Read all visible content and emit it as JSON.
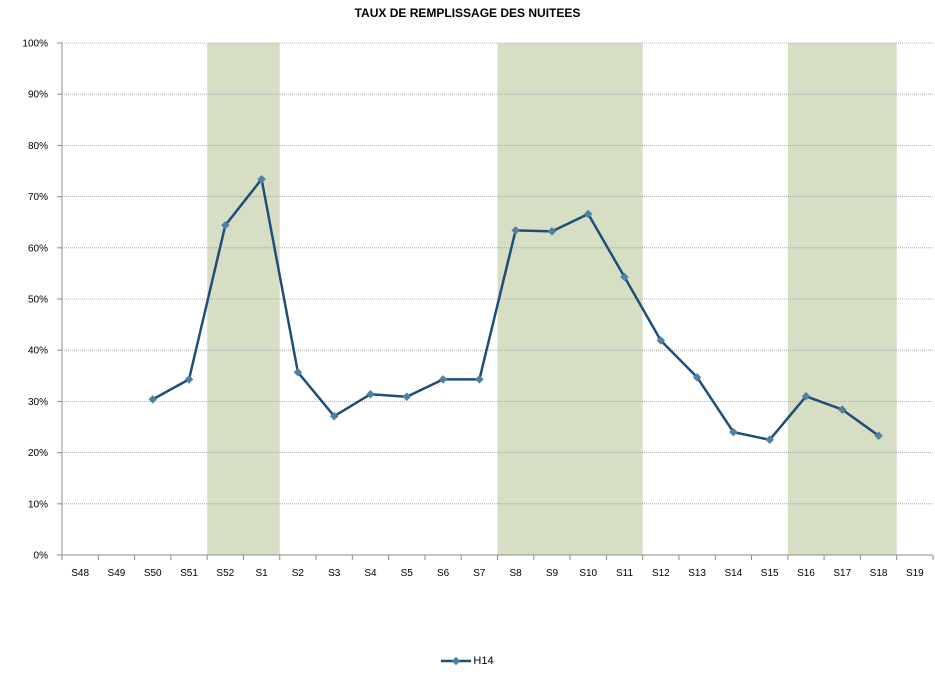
{
  "chart_data": {
    "type": "line",
    "title": "TAUX DE REMPLISSAGE DES NUITEES",
    "categories": [
      "S48",
      "S49",
      "S50",
      "S51",
      "S52",
      "S1",
      "S2",
      "S3",
      "S4",
      "S5",
      "S6",
      "S7",
      "S8",
      "S9",
      "S10",
      "S11",
      "S12",
      "S13",
      "S14",
      "S15",
      "S16",
      "S17",
      "S18",
      "S19"
    ],
    "series": [
      {
        "name": "H14",
        "values": [
          null,
          null,
          0.304,
          0.343,
          0.644,
          0.734,
          0.357,
          0.271,
          0.314,
          0.309,
          0.343,
          0.343,
          0.634,
          0.632,
          0.666,
          0.543,
          0.419,
          0.347,
          0.24,
          0.225,
          0.31,
          0.284,
          0.233,
          null
        ]
      }
    ],
    "ylim": [
      0,
      1
    ],
    "y_tick_labels": [
      "0%",
      "10%",
      "20%",
      "30%",
      "40%",
      "50%",
      "60%",
      "70%",
      "80%",
      "90%",
      "100%"
    ],
    "highlighted_ranges": [
      {
        "from": "S52",
        "to": "S1"
      },
      {
        "from": "S8",
        "to": "S11"
      },
      {
        "from": "S16",
        "to": "S18"
      }
    ],
    "grid": true,
    "legend_position": "bottom",
    "colors": {
      "line": "#1f4e79",
      "marker": "#4f81a3",
      "highlight": "#d6dfc4",
      "grid": "#9a9a9a"
    }
  }
}
